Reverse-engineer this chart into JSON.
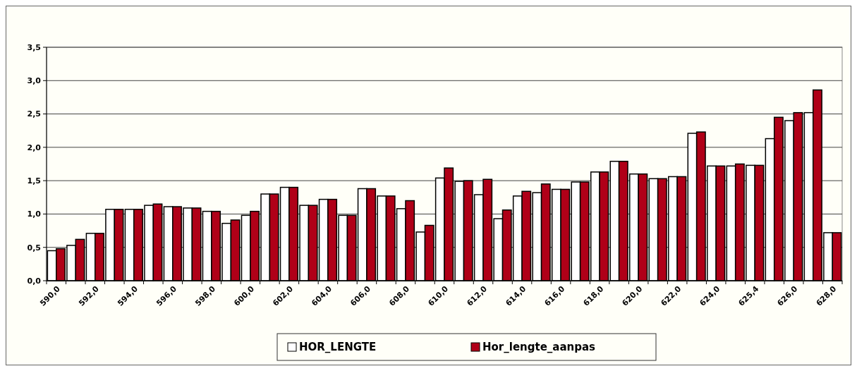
{
  "chart_data": {
    "type": "bar",
    "categories": [
      "590,0",
      null,
      "592,0",
      null,
      "594,0",
      null,
      "596,0",
      null,
      "598,0",
      null,
      "600,0",
      null,
      "602,0",
      null,
      "604,0",
      null,
      "606,0",
      null,
      "608,0",
      null,
      "610,0",
      null,
      "612,0",
      null,
      "614,0",
      null,
      "616,0",
      null,
      "618,0",
      null,
      "620,0",
      null,
      "622,0",
      null,
      "624,0",
      null,
      "625,4",
      null,
      "626,0",
      null,
      "628,0"
    ],
    "series": [
      {
        "name": "HOR_LENGTE",
        "color": "#ffffff",
        "values": [
          0.45,
          0.53,
          0.71,
          1.07,
          1.07,
          1.13,
          1.11,
          1.09,
          1.04,
          0.86,
          0.98,
          1.3,
          1.4,
          1.13,
          1.22,
          0.98,
          1.38,
          1.27,
          1.08,
          0.73,
          1.54,
          1.49,
          1.29,
          0.93,
          1.27,
          1.32,
          1.37,
          1.48,
          1.63,
          1.79,
          1.6,
          1.53,
          1.56,
          2.21,
          1.72,
          1.72,
          1.73,
          2.13,
          2.4,
          2.52,
          0.72
        ]
      },
      {
        "name": "Hor_lengte_aanpas",
        "color": "#b00018",
        "values": [
          0.48,
          0.62,
          0.71,
          1.07,
          1.07,
          1.15,
          1.11,
          1.09,
          1.04,
          0.91,
          1.04,
          1.3,
          1.4,
          1.13,
          1.22,
          0.98,
          1.38,
          1.27,
          1.2,
          0.83,
          1.69,
          1.5,
          1.52,
          1.06,
          1.34,
          1.45,
          1.37,
          1.48,
          1.63,
          1.79,
          1.6,
          1.53,
          1.56,
          2.23,
          1.72,
          1.75,
          1.73,
          2.45,
          2.52,
          2.86,
          0.72
        ]
      }
    ],
    "ylim": [
      0,
      3.5
    ],
    "yticks": [
      {
        "value": 0,
        "label": "0,0"
      },
      {
        "value": 0.5,
        "label": "0,5"
      },
      {
        "value": 1,
        "label": "1,0"
      },
      {
        "value": 1.5,
        "label": "1,5"
      },
      {
        "value": 2,
        "label": "2,0"
      },
      {
        "value": 2.5,
        "label": "2,5"
      },
      {
        "value": 3,
        "label": "3,0"
      },
      {
        "value": 3.5,
        "label": "3,5"
      }
    ],
    "grid": "y",
    "legend": "bottom"
  }
}
